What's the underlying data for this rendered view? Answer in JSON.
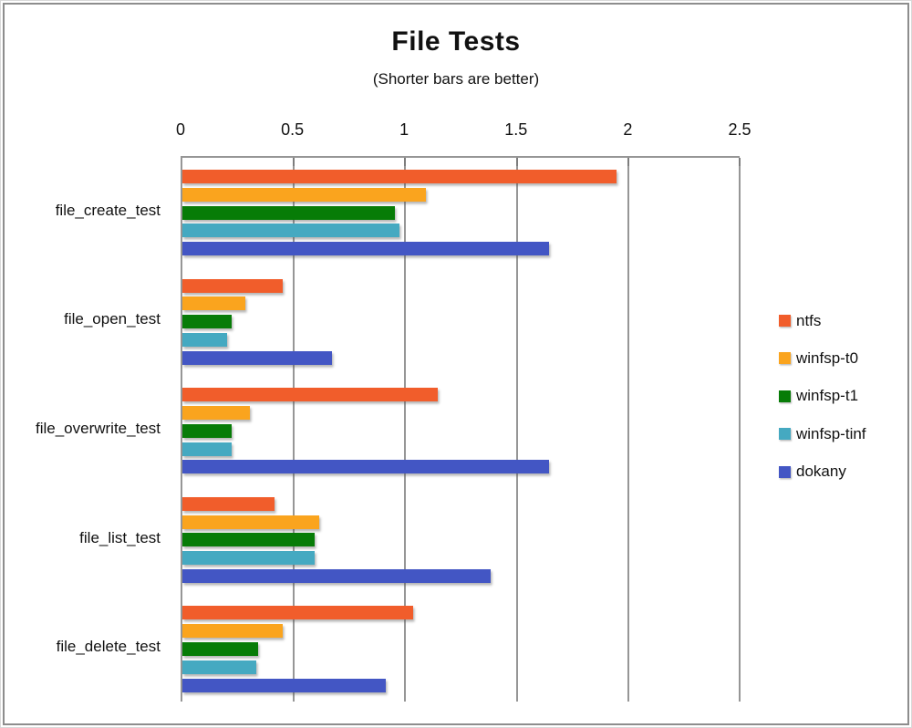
{
  "title": "File Tests",
  "subtitle": "(Shorter bars are better)",
  "chart_data": {
    "type": "bar",
    "orientation": "horizontal",
    "title": "File Tests",
    "subtitle": "(Shorter bars are better)",
    "categories": [
      "file_create_test",
      "file_open_test",
      "file_overwrite_test",
      "file_list_test",
      "file_delete_test"
    ],
    "series": [
      {
        "name": "ntfs",
        "color": "#F15D2B",
        "values": [
          1.94,
          0.45,
          1.14,
          0.41,
          1.03
        ]
      },
      {
        "name": "winfsp-t0",
        "color": "#FAA41E",
        "values": [
          1.09,
          0.28,
          0.3,
          0.61,
          0.45
        ]
      },
      {
        "name": "winfsp-t1",
        "color": "#077C07",
        "values": [
          0.95,
          0.22,
          0.22,
          0.59,
          0.34
        ]
      },
      {
        "name": "winfsp-tinf",
        "color": "#45A9C1",
        "values": [
          0.97,
          0.2,
          0.22,
          0.59,
          0.33
        ]
      },
      {
        "name": "dokany",
        "color": "#4356C4",
        "values": [
          1.64,
          0.67,
          1.64,
          1.38,
          0.91
        ]
      }
    ],
    "xlim": [
      0,
      2.5
    ],
    "x_ticks": [
      {
        "value": 0,
        "label": "0"
      },
      {
        "value": 0.5,
        "label": "0.5"
      },
      {
        "value": 1,
        "label": "1"
      },
      {
        "value": 1.5,
        "label": "1.5"
      },
      {
        "value": 2,
        "label": "2"
      },
      {
        "value": 2.5,
        "label": "2.5"
      }
    ],
    "grid": true,
    "legend_position": "right",
    "colors": {
      "grid": "#969696",
      "frame": "#8d8d8d",
      "text": "#111111"
    }
  }
}
